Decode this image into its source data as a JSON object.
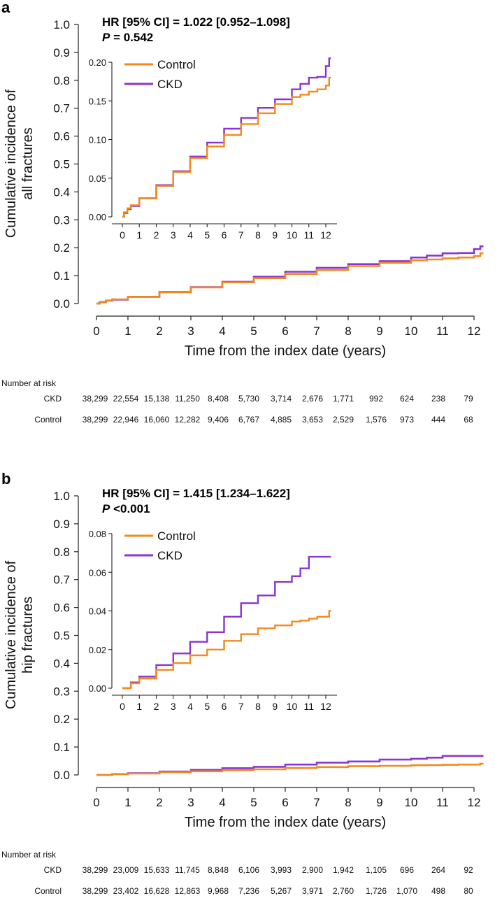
{
  "colors": {
    "control": "#f28a1e",
    "ckd": "#8a35d1",
    "axis": "#222222"
  },
  "panels": [
    {
      "label": "a",
      "hr_text": "HR [95% CI] = 1.022 [0.952–1.098]",
      "p_label": "P",
      "p_value": " = 0.542",
      "risk_title": "Number at risk",
      "risk_rows": [
        {
          "group": "CKD",
          "values": [
            "38,299",
            "22,554",
            "15,138",
            "11,250",
            "8,408",
            "5,730",
            "3,714",
            "2,676",
            "1,771",
            "992",
            "624",
            "238",
            "79"
          ]
        },
        {
          "group": "Control",
          "values": [
            "38,299",
            "22,946",
            "16,060",
            "12,282",
            "9,406",
            "6,767",
            "4,885",
            "3,653",
            "2,529",
            "1,576",
            "973",
            "444",
            "68"
          ]
        }
      ]
    },
    {
      "label": "b",
      "hr_text": "HR [95% CI] = 1.415 [1.234–1.622]",
      "p_label": "P",
      "p_value": " <0.001",
      "risk_title": "Number at risk",
      "risk_rows": [
        {
          "group": "CKD",
          "values": [
            "38,299",
            "23,009",
            "15,633",
            "11,745",
            "8,848",
            "6,106",
            "3,993",
            "2,900",
            "1,942",
            "1,105",
            "696",
            "264",
            "92"
          ]
        },
        {
          "group": "Control",
          "values": [
            "38,299",
            "23,402",
            "16,628",
            "12,863",
            "9,968",
            "7,236",
            "5,267",
            "3,971",
            "2,760",
            "1,726",
            "1,070",
            "498",
            "80"
          ]
        }
      ]
    }
  ],
  "chart_data": [
    {
      "type": "line",
      "panel": "a",
      "title": "",
      "xlabel": "Time from the index date (years)",
      "ylabel": "Cumulative incidence of all fractures",
      "xlim": [
        0,
        12.3
      ],
      "ylim": [
        0,
        1.0
      ],
      "x_ticks": [
        0,
        1,
        2,
        3,
        4,
        5,
        6,
        7,
        8,
        9,
        10,
        11,
        12
      ],
      "y_ticks": [
        0.0,
        0.1,
        0.2,
        0.3,
        0.4,
        0.5,
        0.6,
        0.7,
        0.8,
        0.9,
        1.0
      ],
      "y_tick_labels": [
        "0.0",
        "0.1",
        "0.2",
        "0.3",
        "0.4",
        "0.5",
        "0.6",
        "0.7",
        "0.8",
        "0.9",
        "1.0"
      ],
      "series": [
        {
          "name": "Control",
          "x": [
            0,
            0.1,
            0.3,
            0.5,
            1,
            2,
            3,
            4,
            5,
            6,
            7,
            8,
            9,
            10,
            10.5,
            11,
            11.5,
            12,
            12.2,
            12.3
          ],
          "y": [
            0,
            0.006,
            0.011,
            0.015,
            0.024,
            0.04,
            0.058,
            0.076,
            0.091,
            0.106,
            0.12,
            0.134,
            0.146,
            0.155,
            0.158,
            0.162,
            0.165,
            0.17,
            0.18,
            0.18
          ]
        },
        {
          "name": "CKD",
          "x": [
            0,
            0.1,
            0.3,
            0.5,
            1,
            2,
            3,
            4,
            5,
            6,
            7,
            8,
            9,
            10,
            10.5,
            11,
            11.5,
            12,
            12.2,
            12.3
          ],
          "y": [
            0,
            0.005,
            0.01,
            0.014,
            0.024,
            0.041,
            0.059,
            0.078,
            0.096,
            0.114,
            0.128,
            0.141,
            0.152,
            0.165,
            0.172,
            0.18,
            0.181,
            0.195,
            0.205,
            0.205
          ]
        }
      ],
      "legend": [
        "Control",
        "CKD"
      ],
      "legend_position": "inset-top-left",
      "inset": {
        "xlim": [
          0,
          12.5
        ],
        "ylim": [
          0,
          0.2
        ],
        "x_ticks": [
          0,
          1,
          2,
          3,
          4,
          5,
          6,
          7,
          8,
          9,
          10,
          11,
          12
        ],
        "y_ticks": [
          0,
          0.05,
          0.1,
          0.15,
          0.2
        ],
        "y_tick_labels": [
          "0.00",
          "0.05",
          "0.10",
          "0.15",
          "0.20"
        ]
      }
    },
    {
      "type": "line",
      "panel": "b",
      "title": "",
      "xlabel": "Time from the index date (years)",
      "ylabel": "Cumulative incidence of hip fractures",
      "xlim": [
        0,
        12.3
      ],
      "ylim": [
        0,
        1.0
      ],
      "x_ticks": [
        0,
        1,
        2,
        3,
        4,
        5,
        6,
        7,
        8,
        9,
        10,
        11,
        12
      ],
      "y_ticks": [
        0.0,
        0.1,
        0.2,
        0.3,
        0.4,
        0.5,
        0.6,
        0.7,
        0.8,
        0.9,
        1.0
      ],
      "y_tick_labels": [
        "0.0",
        "0.1",
        "0.2",
        "0.3",
        "0.4",
        "0.5",
        "0.6",
        "0.7",
        "0.8",
        "0.9",
        "1.0"
      ],
      "series": [
        {
          "name": "Control",
          "x": [
            0,
            0.5,
            1,
            2,
            3,
            4,
            5,
            6,
            7,
            8,
            9,
            10,
            10.5,
            11,
            11.5,
            12,
            12.2,
            12.3
          ],
          "y": [
            0,
            0.0025,
            0.005,
            0.0095,
            0.013,
            0.017,
            0.02,
            0.0245,
            0.028,
            0.031,
            0.0325,
            0.0345,
            0.035,
            0.036,
            0.037,
            0.037,
            0.04,
            0.04
          ]
        },
        {
          "name": "CKD",
          "x": [
            0,
            0.5,
            1,
            2,
            3,
            4,
            5,
            6,
            7,
            8,
            9,
            10,
            10.5,
            11,
            11.5,
            12,
            12.3
          ],
          "y": [
            0,
            0.003,
            0.006,
            0.012,
            0.018,
            0.024,
            0.029,
            0.037,
            0.044,
            0.048,
            0.055,
            0.058,
            0.062,
            0.068,
            0.068,
            0.068,
            0.068
          ]
        }
      ],
      "legend": [
        "Control",
        "CKD"
      ],
      "legend_position": "inset-top-left",
      "inset": {
        "xlim": [
          0,
          12.5
        ],
        "ylim": [
          0,
          0.08
        ],
        "x_ticks": [
          0,
          1,
          2,
          3,
          4,
          5,
          6,
          7,
          8,
          9,
          10,
          11,
          12
        ],
        "y_ticks": [
          0,
          0.02,
          0.04,
          0.06,
          0.08
        ],
        "y_tick_labels": [
          "0.00",
          "0.02",
          "0.04",
          "0.06",
          "0.08"
        ]
      }
    }
  ]
}
